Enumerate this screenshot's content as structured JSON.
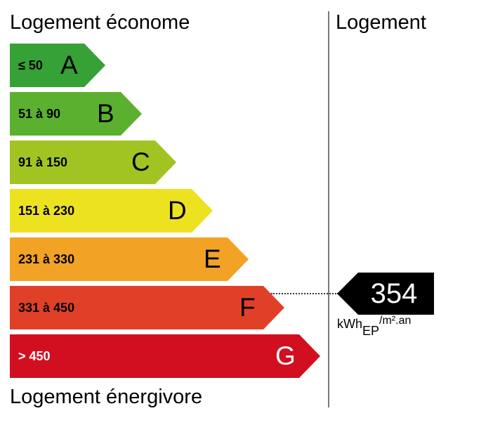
{
  "labels": {
    "top": "Logement économe",
    "bottom": "Logement énergivore",
    "right": "Logement"
  },
  "classes": [
    {
      "range": "≤ 50",
      "letter": "A",
      "color": "#36a136",
      "text_color": "#000000"
    },
    {
      "range": "51 à 90",
      "letter": "B",
      "color": "#5cb02f",
      "text_color": "#000000"
    },
    {
      "range": "91 à 150",
      "letter": "C",
      "color": "#a2c423",
      "text_color": "#000000"
    },
    {
      "range": "151 à 230",
      "letter": "D",
      "color": "#ede21f",
      "text_color": "#000000"
    },
    {
      "range": "231 à 330",
      "letter": "E",
      "color": "#f2a224",
      "text_color": "#000000"
    },
    {
      "range": "331 à 450",
      "letter": "F",
      "color": "#e14028",
      "text_color": "#000000"
    },
    {
      "range": "> 450",
      "letter": "G",
      "color": "#d10f21",
      "text_color": "#ffffff"
    }
  ],
  "indicator": {
    "value": "354",
    "class": "F",
    "unit_main": "kWh",
    "unit_sub": "EP",
    "unit_rest": "/m².an"
  }
}
